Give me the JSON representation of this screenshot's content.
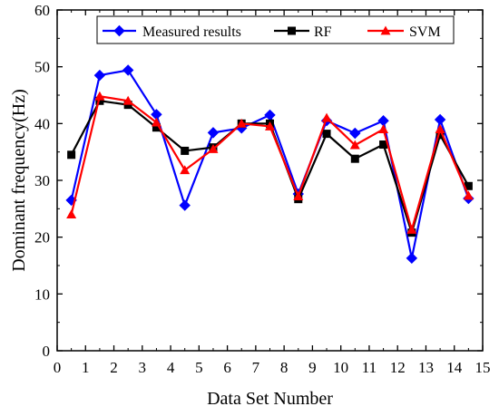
{
  "chart_data": {
    "type": "line",
    "xlabel": "Data Set Number",
    "ylabel": "Dominant frequency(Hz)",
    "xlim": [
      0,
      15
    ],
    "ylim": [
      0,
      60
    ],
    "xticks": [
      "0",
      "1",
      "2",
      "3",
      "4",
      "5",
      "6",
      "7",
      "8",
      "9",
      "10",
      "11",
      "12",
      "13",
      "14",
      "15"
    ],
    "yticks": [
      "0",
      "10",
      "20",
      "30",
      "40",
      "50",
      "60"
    ],
    "grid": false,
    "legend_placement": "top",
    "x": [
      0.5,
      1.5,
      2.5,
      3.5,
      4.5,
      5.5,
      6.5,
      7.5,
      8.5,
      9.5,
      10.5,
      11.5,
      12.5,
      13.5,
      14.5
    ],
    "series": [
      {
        "name": "Measured results",
        "color": "#0000ff",
        "marker": "diamond",
        "values": [
          26.5,
          48.5,
          49.4,
          41.6,
          25.6,
          38.4,
          39.2,
          41.5,
          27.6,
          40.5,
          38.3,
          40.5,
          16.3,
          40.7,
          26.8
        ]
      },
      {
        "name": "RF",
        "color": "#000000",
        "marker": "square",
        "values": [
          34.5,
          44.0,
          43.3,
          39.3,
          35.2,
          35.8,
          40.0,
          40.0,
          26.7,
          38.2,
          33.8,
          36.3,
          20.8,
          38.0,
          29.0
        ]
      },
      {
        "name": "SVM",
        "color": "#ff0000",
        "marker": "triangle",
        "values": [
          24.0,
          44.8,
          44.0,
          40.2,
          31.8,
          35.5,
          40.0,
          39.5,
          27.2,
          41.0,
          36.2,
          39.0,
          21.3,
          39.0,
          27.3
        ]
      }
    ]
  }
}
